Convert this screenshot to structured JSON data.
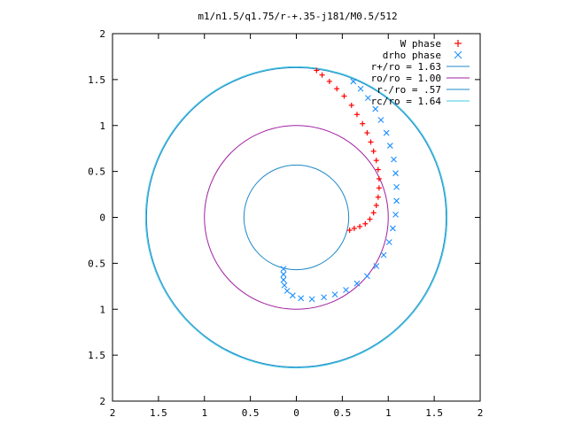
{
  "chart_data": {
    "type": "scatter",
    "title": "m1/n1.5/q1.75/r-+.35-j181/M0.5/512",
    "xlim": [
      -2,
      2
    ],
    "ylim": [
      -2,
      2
    ],
    "x_ticks": [
      -2,
      -1.5,
      -1,
      -0.5,
      0,
      0.5,
      1,
      1.5,
      2
    ],
    "y_ticks": [
      -2,
      -1.5,
      -1,
      -0.5,
      0,
      0.5,
      1,
      1.5,
      2
    ],
    "x_tick_labels": [
      "2",
      "1.5",
      "1",
      "0.5",
      "0",
      "0.5",
      "1",
      "1.5",
      "2"
    ],
    "y_tick_labels": [
      "2",
      "1.5",
      "1",
      "0.5",
      "0",
      "0.5",
      "1",
      "1.5",
      "2"
    ],
    "grid": false,
    "legend_position": "top-right",
    "series": [
      {
        "name": "W phase",
        "kind": "points",
        "marker": "+",
        "color": "#ff0000",
        "points": [
          [
            0.22,
            1.6
          ],
          [
            0.28,
            1.55
          ],
          [
            0.36,
            1.48
          ],
          [
            0.44,
            1.4
          ],
          [
            0.52,
            1.32
          ],
          [
            0.6,
            1.22
          ],
          [
            0.66,
            1.12
          ],
          [
            0.72,
            1.02
          ],
          [
            0.77,
            0.92
          ],
          [
            0.81,
            0.82
          ],
          [
            0.84,
            0.72
          ],
          [
            0.87,
            0.62
          ],
          [
            0.89,
            0.52
          ],
          [
            0.9,
            0.42
          ],
          [
            0.9,
            0.32
          ],
          [
            0.89,
            0.22
          ],
          [
            0.87,
            0.13
          ],
          [
            0.84,
            0.05
          ],
          [
            0.8,
            -0.02
          ],
          [
            0.75,
            -0.07
          ],
          [
            0.69,
            -0.1
          ],
          [
            0.63,
            -0.12
          ],
          [
            0.58,
            -0.14
          ]
        ]
      },
      {
        "name": "drho phase",
        "kind": "points",
        "marker": "x",
        "color": "#1e90ff",
        "points": [
          [
            0.62,
            1.48
          ],
          [
            0.7,
            1.4
          ],
          [
            0.78,
            1.3
          ],
          [
            0.86,
            1.18
          ],
          [
            0.92,
            1.06
          ],
          [
            0.98,
            0.92
          ],
          [
            1.02,
            0.78
          ],
          [
            1.06,
            0.63
          ],
          [
            1.08,
            0.48
          ],
          [
            1.09,
            0.33
          ],
          [
            1.09,
            0.18
          ],
          [
            1.08,
            0.03
          ],
          [
            1.05,
            -0.12
          ],
          [
            1.01,
            -0.27
          ],
          [
            0.95,
            -0.41
          ],
          [
            0.87,
            -0.53
          ],
          [
            0.77,
            -0.64
          ],
          [
            0.66,
            -0.72
          ],
          [
            0.54,
            -0.79
          ],
          [
            0.42,
            -0.84
          ],
          [
            0.3,
            -0.87
          ],
          [
            0.17,
            -0.89
          ],
          [
            0.05,
            -0.88
          ],
          [
            -0.04,
            -0.85
          ],
          [
            -0.1,
            -0.8
          ],
          [
            -0.13,
            -0.74
          ],
          [
            -0.14,
            -0.68
          ],
          [
            -0.14,
            -0.62
          ],
          [
            -0.14,
            -0.56
          ]
        ]
      },
      {
        "name": "r+/ro = 1.63",
        "kind": "circle",
        "radius": 1.63,
        "color": "#1e88c8"
      },
      {
        "name": "ro/ro = 1.00",
        "kind": "circle",
        "radius": 1.0,
        "color": "#a020a0"
      },
      {
        "name": "r-/ro = .57",
        "kind": "circle",
        "radius": 0.57,
        "color": "#1e88c8"
      },
      {
        "name": "rc/ro = 1.64",
        "kind": "circle",
        "radius": 1.64,
        "color": "#40c8e0"
      }
    ]
  }
}
